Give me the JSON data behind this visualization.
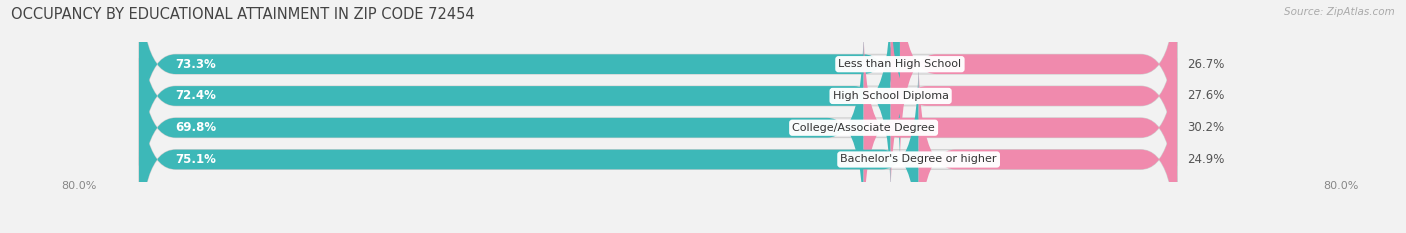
{
  "title": "OCCUPANCY BY EDUCATIONAL ATTAINMENT IN ZIP CODE 72454",
  "source": "Source: ZipAtlas.com",
  "categories": [
    "Less than High School",
    "High School Diploma",
    "College/Associate Degree",
    "Bachelor's Degree or higher"
  ],
  "owner_values": [
    73.3,
    72.4,
    69.8,
    75.1
  ],
  "renter_values": [
    26.7,
    27.6,
    30.2,
    24.9
  ],
  "owner_color": "#3db8b8",
  "renter_color": "#f08aad",
  "owner_color_light": "#a8dede",
  "renter_color_light": "#f8c8d8",
  "background_color": "#f2f2f2",
  "bar_bg_color": "#e8e8e8",
  "text_dark": "#444444",
  "text_white": "#ffffff",
  "title_fontsize": 10.5,
  "source_fontsize": 7.5,
  "bar_label_fontsize": 8.5,
  "cat_label_fontsize": 8,
  "legend_fontsize": 8,
  "bar_height": 0.62,
  "xlim": 100.0,
  "total_width": 100.0
}
